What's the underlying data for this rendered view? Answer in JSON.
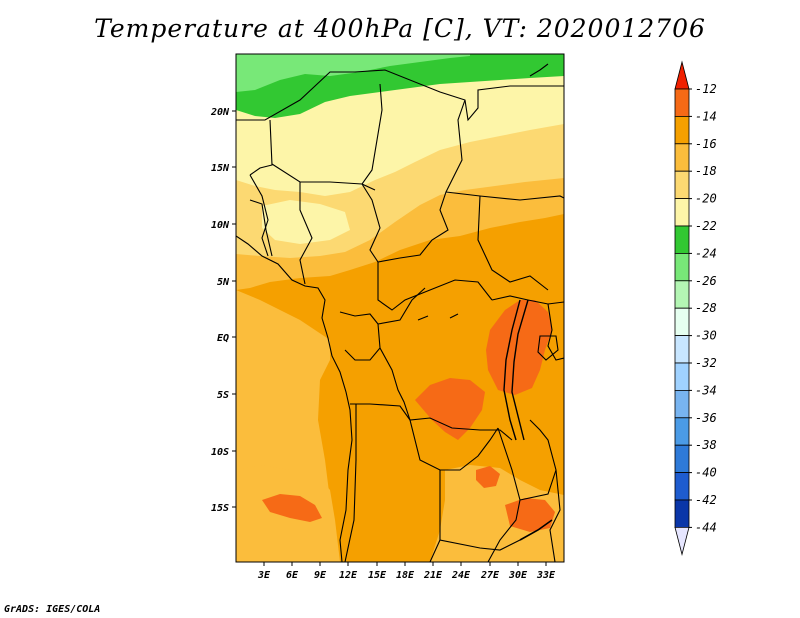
{
  "title": "Temperature at 400hPa [C], VT: 2020012706",
  "footer": "GrADS: IGES/COLA",
  "map": {
    "lon_labels": [
      "3E",
      "6E",
      "9E",
      "12E",
      "15E",
      "18E",
      "21E",
      "24E",
      "27E",
      "30E",
      "33E"
    ],
    "lat_labels": [
      "20N",
      "15N",
      "10N",
      "5N",
      "EQ",
      "5S",
      "10S",
      "15S"
    ],
    "fill_colors": {
      "c14": "#f5a000",
      "c16": "#fbbd3c",
      "c18": "#fcd972",
      "c20": "#fdf5a8",
      "c22": "#32c832",
      "c24": "#78e878",
      "c12": "#f66a16"
    },
    "border_color": "#000000"
  },
  "colorbar": {
    "labels": [
      "-12",
      "-14",
      "-16",
      "-18",
      "-20",
      "-22",
      "-24",
      "-26",
      "-28",
      "-30",
      "-32",
      "-34",
      "-36",
      "-38",
      "-40",
      "-42",
      "-44"
    ],
    "colors": [
      "#f02000",
      "#f66a16",
      "#f5a000",
      "#fbbd3c",
      "#fcd972",
      "#fdf5a8",
      "#32c832",
      "#78e878",
      "#b4f6b4",
      "#e6fff0",
      "#c8e6ff",
      "#a0d2ff",
      "#78b4f0",
      "#4b9be6",
      "#2e7ad8",
      "#1e5ccf",
      "#0a36a8",
      "#0a0a78",
      "#e6e6ff"
    ]
  }
}
